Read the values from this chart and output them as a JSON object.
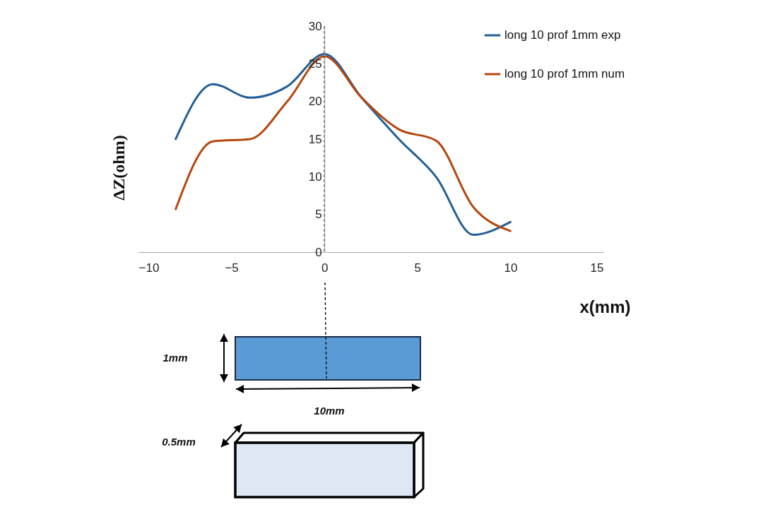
{
  "chart_data": {
    "type": "line",
    "xlabel": "x(mm)",
    "ylabel": "ΔZ(ohm)",
    "x": [
      -8,
      -6,
      -4,
      -2,
      0,
      2,
      4,
      6,
      8,
      10
    ],
    "series": [
      {
        "name": "long 10 prof 1mm exp",
        "color": "#235f97",
        "values": [
          15,
          22.3,
          20.5,
          22,
          26.3,
          20.5,
          15,
          10,
          2.3,
          4
        ]
      },
      {
        "name": "long 10 prof 1mm num",
        "color": "#b5470f",
        "values": [
          5.7,
          14.7,
          15,
          20,
          26,
          20.5,
          16.3,
          14.8,
          6,
          2.8
        ]
      }
    ],
    "xlim": [
      -10,
      15
    ],
    "xticks": [
      -10,
      -5,
      0,
      5,
      10,
      15
    ],
    "ylim": [
      0,
      30
    ],
    "yticks": [
      0,
      5,
      10,
      15,
      20,
      25,
      30
    ],
    "grid": false,
    "legend": "top right",
    "marker": "none",
    "line_style": "solid",
    "ref_lines": [
      {
        "axis": "x",
        "value": 0,
        "label": null,
        "color": "#000000",
        "line_style": "dashed"
      }
    ],
    "annotations": [
      "1mm",
      "10mm",
      "0.5mm"
    ]
  }
}
